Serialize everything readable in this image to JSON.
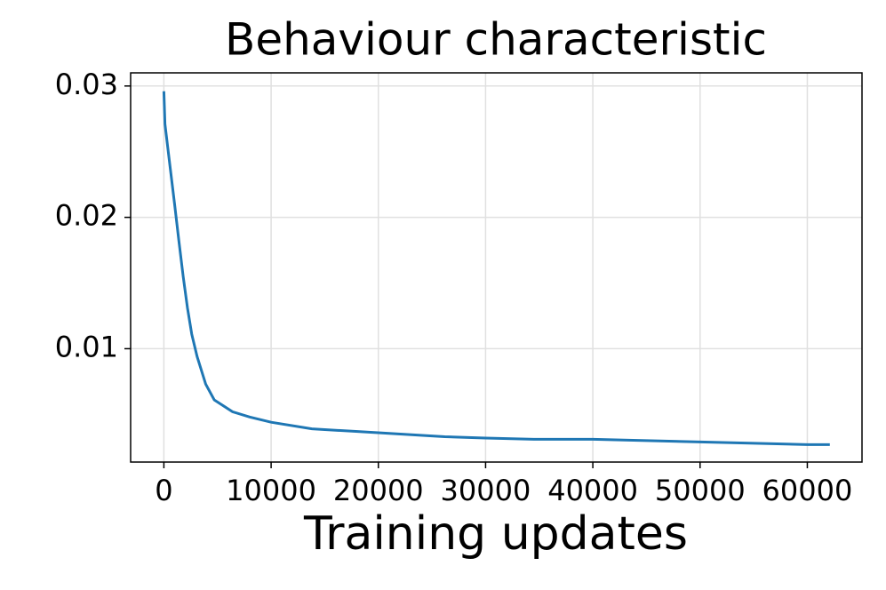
{
  "chart_data": {
    "type": "line",
    "title": "Behaviour characteristic",
    "x_label": "Training updates",
    "x": [
      0,
      100,
      600,
      1000,
      1400,
      1800,
      2200,
      2600,
      3100,
      3900,
      4700,
      6400,
      8000,
      10000,
      13800,
      17900,
      26200,
      30000,
      34500,
      40000,
      50000,
      55100,
      60000,
      62100
    ],
    "series": [
      {
        "name": "Behaviour characteristic",
        "color": "#1f77b4",
        "values": [
          0.0296,
          0.0271,
          0.0237,
          0.021,
          0.0182,
          0.0155,
          0.0131,
          0.0111,
          0.0094,
          0.0073,
          0.0061,
          0.0052,
          0.0048,
          0.0044,
          0.0039,
          0.0037,
          0.0033,
          0.0032,
          0.0031,
          0.0031,
          0.0029,
          0.0028,
          0.0027,
          0.0027
        ]
      }
    ],
    "xlim": [
      -3100,
      65100
    ],
    "xticks": [
      0,
      10000,
      20000,
      30000,
      40000,
      50000,
      60000
    ],
    "ylim": [
      0.00137,
      0.031
    ],
    "yticks": [
      0.01,
      0.02,
      0.03
    ],
    "grid": true
  }
}
